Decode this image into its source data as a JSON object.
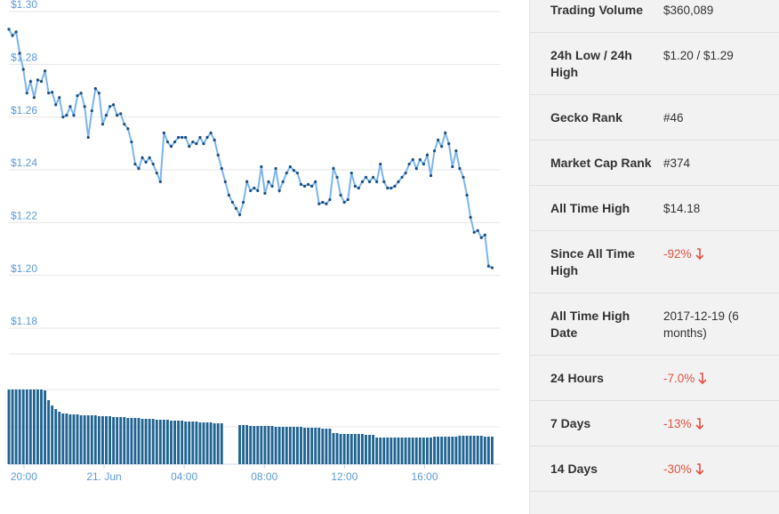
{
  "chart_data": {
    "type": "line",
    "color": "#7cb5ec",
    "marker_color": "#1c4e80",
    "volume_color": "#1f6391",
    "grid": true,
    "ylim": [
      1.18,
      1.3
    ],
    "yticks": [
      {
        "value": 1.18,
        "label": "$1.18"
      },
      {
        "value": 1.2,
        "label": "$1.20"
      },
      {
        "value": 1.22,
        "label": "$1.22"
      },
      {
        "value": 1.24,
        "label": "$1.24"
      },
      {
        "value": 1.26,
        "label": "$1.26"
      },
      {
        "value": 1.28,
        "label": "$1.28"
      },
      {
        "value": 1.3,
        "label": "$1.30"
      }
    ],
    "xlim": [
      -0.75,
      23.75
    ],
    "xticks": [
      {
        "value": 0,
        "label": "20:00"
      },
      {
        "value": 4,
        "label": "21. Jun"
      },
      {
        "value": 8,
        "label": "04:00"
      },
      {
        "value": 12,
        "label": "08:00"
      },
      {
        "value": 16,
        "label": "12:00"
      },
      {
        "value": 20,
        "label": "16:00"
      }
    ],
    "x": [
      -0.75,
      -0.57,
      -0.39,
      -0.21,
      -0.03,
      0.15,
      0.33,
      0.51,
      0.69,
      0.87,
      1.05,
      1.23,
      1.41,
      1.59,
      1.77,
      1.95,
      2.13,
      2.31,
      2.49,
      2.67,
      2.85,
      3.03,
      3.21,
      3.39,
      3.57,
      3.75,
      3.93,
      4.11,
      4.29,
      4.47,
      4.65,
      4.83,
      5.01,
      5.19,
      5.37,
      5.55,
      5.73,
      5.91,
      6.09,
      6.27,
      6.45,
      6.63,
      6.81,
      6.99,
      7.17,
      7.35,
      7.53,
      7.71,
      7.89,
      8.07,
      8.25,
      8.43,
      8.61,
      8.79,
      8.97,
      9.15,
      9.33,
      9.51,
      9.69,
      9.87,
      10.05,
      10.23,
      10.41,
      10.59,
      10.77,
      10.95,
      11.13,
      11.31,
      11.49,
      11.67,
      11.85,
      12.03,
      12.21,
      12.39,
      12.57,
      12.75,
      12.93,
      13.11,
      13.29,
      13.47,
      13.65,
      13.83,
      14.01,
      14.19,
      14.37,
      14.55,
      14.73,
      14.91,
      15.09,
      15.27,
      15.45,
      15.63,
      15.81,
      15.99,
      16.17,
      16.35,
      16.53,
      16.71,
      16.89,
      17.07,
      17.25,
      17.43,
      17.61,
      17.79,
      17.97,
      18.15,
      18.33,
      18.51,
      18.69,
      18.87,
      19.05,
      19.23,
      19.41,
      19.59,
      19.77,
      19.95,
      20.13,
      20.31,
      20.49,
      20.67,
      20.85,
      21.03,
      21.21,
      21.39,
      21.57,
      21.75,
      21.93,
      22.11,
      22.29,
      22.47,
      22.65,
      22.83,
      23.01,
      23.19,
      23.37
    ],
    "values": [
      1.2933,
      1.2909,
      1.2923,
      1.2842,
      1.2781,
      1.2691,
      1.2735,
      1.2674,
      1.2741,
      1.2735,
      1.2775,
      1.2691,
      1.2694,
      1.2647,
      1.2674,
      1.26,
      1.2607,
      1.264,
      1.2607,
      1.2681,
      1.2691,
      1.264,
      1.2523,
      1.2624,
      1.2708,
      1.2691,
      1.2573,
      1.2607,
      1.264,
      1.2647,
      1.2607,
      1.2613,
      1.2573,
      1.2556,
      1.2506,
      1.2422,
      1.2405,
      1.2446,
      1.2429,
      1.2446,
      1.2422,
      1.2388,
      1.2355,
      1.254,
      1.2506,
      1.2489,
      1.2506,
      1.2523,
      1.2523,
      1.2523,
      1.2489,
      1.2506,
      1.2499,
      1.2523,
      1.2499,
      1.2523,
      1.254,
      1.2513,
      1.2456,
      1.2405,
      1.2355,
      1.2304,
      1.2277,
      1.2254,
      1.223,
      1.2277,
      1.2355,
      1.2321,
      1.2331,
      1.2321,
      1.2412,
      1.2311,
      1.2355,
      1.2338,
      1.2405,
      1.2321,
      1.2355,
      1.2388,
      1.2412,
      1.2398,
      1.2388,
      1.2345,
      1.2338,
      1.2345,
      1.2338,
      1.2355,
      1.2271,
      1.2277,
      1.2271,
      1.2287,
      1.2405,
      1.2372,
      1.2304,
      1.2277,
      1.2287,
      1.2388,
      1.2338,
      1.2331,
      1.2355,
      1.2372,
      1.2355,
      1.2372,
      1.2355,
      1.2422,
      1.2355,
      1.2331,
      1.2331,
      1.2338,
      1.2355,
      1.2372,
      1.2388,
      1.2422,
      1.2439,
      1.2405,
      1.2439,
      1.2422,
      1.2456,
      1.2378,
      1.2472,
      1.2513,
      1.2489,
      1.254,
      1.2499,
      1.2412,
      1.2472,
      1.2405,
      1.2372,
      1.2304,
      1.222,
      1.2163,
      1.217,
      1.2143,
      1.2153,
      1.2035,
      1.2029
    ],
    "volume": [
      84,
      84,
      84,
      84,
      84,
      84,
      84,
      84,
      84,
      84,
      83,
      72,
      66,
      62,
      59,
      57,
      57,
      56,
      56,
      56,
      55,
      55,
      55,
      55,
      55,
      54,
      54,
      54,
      54,
      53,
      53,
      53,
      53,
      52,
      52,
      52,
      52,
      51,
      51,
      51,
      51,
      50,
      50,
      50,
      50,
      49,
      49,
      49,
      49,
      48,
      48,
      48,
      48,
      47,
      47,
      47,
      47,
      46,
      46,
      46,
      null,
      null,
      null,
      null,
      44,
      44,
      44,
      43,
      43,
      43,
      43,
      43,
      43,
      43,
      42,
      42,
      42,
      42,
      42,
      42,
      42,
      42,
      41,
      41,
      41,
      41,
      41,
      40,
      40,
      40,
      35,
      35,
      34,
      34,
      34,
      34,
      34,
      34,
      34,
      33,
      33,
      33,
      30,
      30,
      30,
      30,
      30,
      30,
      30,
      30,
      30,
      30,
      30,
      30,
      30,
      30,
      30,
      30,
      31,
      31,
      31,
      31,
      31,
      31,
      31,
      32,
      32,
      32,
      32,
      32,
      32,
      32,
      31,
      31,
      31
    ]
  },
  "table": {
    "rows": [
      [
        "Trading Volume",
        "$360,089"
      ],
      [
        "24h Low / 24h High",
        "$1.20 / $1.29"
      ],
      [
        "Gecko Rank",
        "#46"
      ],
      [
        "Market Cap Rank",
        "#374"
      ],
      [
        "All Time High",
        "$14.18"
      ],
      [
        "Since All Time High",
        "-92%"
      ],
      [
        "All Time High Date",
        "2017-12-19 (6 months)"
      ],
      [
        "24 Hours",
        "-7.0%"
      ],
      [
        "7 Days",
        "-13%"
      ],
      [
        "14 Days",
        "-30%"
      ]
    ]
  }
}
